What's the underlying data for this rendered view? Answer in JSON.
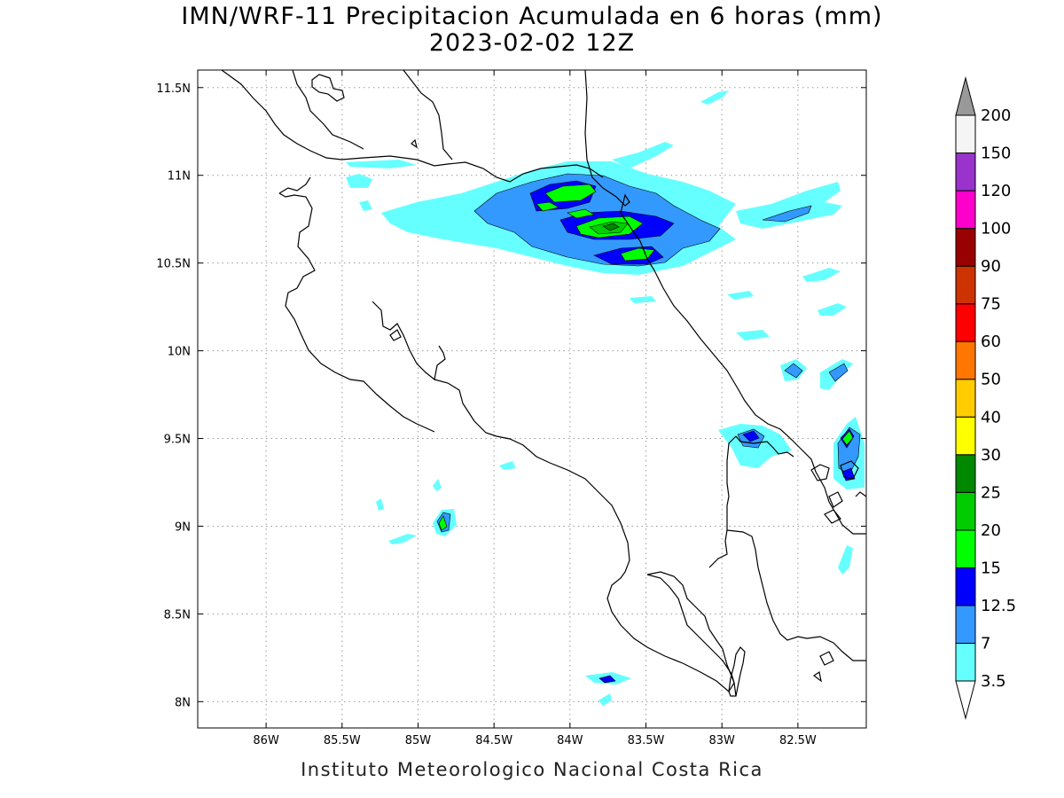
{
  "header": {
    "title_line1": "IMN/WRF-11 Precipitacion Acumulada en 6 horas (mm)",
    "title_line2": "2023-02-02 12Z"
  },
  "footer": {
    "credit": "Instituto Meteorologico Nacional Costa Rica"
  },
  "map": {
    "lon_range": [
      -86.45,
      -82.05
    ],
    "lat_range": [
      7.85,
      11.6
    ],
    "lon_ticks": [
      {
        "value": -86.0,
        "label": "86W"
      },
      {
        "value": -85.5,
        "label": "85.5W"
      },
      {
        "value": -85.0,
        "label": "85W"
      },
      {
        "value": -84.5,
        "label": "84.5W"
      },
      {
        "value": -84.0,
        "label": "84W"
      },
      {
        "value": -83.5,
        "label": "83.5W"
      },
      {
        "value": -83.0,
        "label": "83W"
      },
      {
        "value": -82.5,
        "label": "82.5W"
      }
    ],
    "lat_ticks": [
      {
        "value": 11.5,
        "label": "11.5N"
      },
      {
        "value": 11.0,
        "label": "11N"
      },
      {
        "value": 10.5,
        "label": "10.5N"
      },
      {
        "value": 10.0,
        "label": "10N"
      },
      {
        "value": 9.5,
        "label": "9.5N"
      },
      {
        "value": 9.0,
        "label": "9N"
      },
      {
        "value": 8.5,
        "label": "8.5N"
      },
      {
        "value": 8.0,
        "label": "8N"
      }
    ],
    "colors": {
      "c3_5": "#66ffff",
      "c7": "#3399ff",
      "c12_5": "#0000ff",
      "c15": "#00ff00",
      "c20": "#00cc00",
      "c25": "#008800"
    }
  },
  "colorbar": {
    "levels": [
      {
        "label": "3.5",
        "color": "#66ffff"
      },
      {
        "label": "7",
        "color": "#3399ff"
      },
      {
        "label": "12.5",
        "color": "#0000ff"
      },
      {
        "label": "15",
        "color": "#00ff00"
      },
      {
        "label": "20",
        "color": "#00cc00"
      },
      {
        "label": "25",
        "color": "#008800"
      },
      {
        "label": "30",
        "color": "#ffff00"
      },
      {
        "label": "40",
        "color": "#ffcc00"
      },
      {
        "label": "50",
        "color": "#ff7700"
      },
      {
        "label": "60",
        "color": "#ff0000"
      },
      {
        "label": "75",
        "color": "#cc3300"
      },
      {
        "label": "90",
        "color": "#990000"
      },
      {
        "label": "100",
        "color": "#ff00cc"
      },
      {
        "label": "120",
        "color": "#9933cc"
      },
      {
        "label": "150",
        "color": "#f5f5f5"
      },
      {
        "label": "200",
        "color": "#999999"
      }
    ]
  }
}
